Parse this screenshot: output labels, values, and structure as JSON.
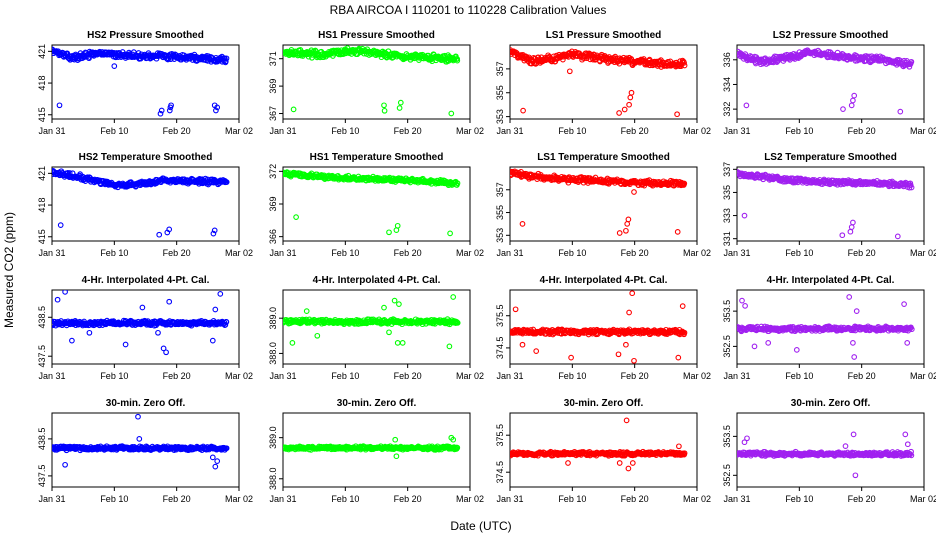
{
  "figure": {
    "title": "RBA   AIRCOA I   110201 to 110228   Calibration Values",
    "xlabel": "Date (UTC)",
    "ylabel": "Measured CO2 (ppm)",
    "x_tick_labels": [
      "Jan 31",
      "Feb 10",
      "Feb 20",
      "Mar 02"
    ],
    "x_tick_days": [
      0,
      10,
      20,
      30
    ],
    "x_range_days": [
      0,
      30
    ]
  },
  "chart_data": [
    {
      "type": "scatter",
      "row": 0,
      "col": 0,
      "title": "HS2 Pressure Smoothed",
      "color": "#0000ff",
      "ylim": [
        414.6,
        421.6
      ],
      "yticks": [
        415,
        418,
        421
      ],
      "ytick_labels": [
        "415",
        "418",
        "421"
      ],
      "baseline": 420.6,
      "noise": 0.35,
      "drift": [
        [
          0,
          421.1
        ],
        [
          3,
          420.4
        ],
        [
          8,
          420.8
        ],
        [
          12,
          420.6
        ],
        [
          20,
          420.5
        ],
        [
          28,
          420.2
        ]
      ],
      "outliers": [
        [
          1.2,
          415.9
        ],
        [
          17.4,
          415.1
        ],
        [
          17.6,
          415.4
        ],
        [
          18.9,
          415.4
        ],
        [
          19.0,
          415.7
        ],
        [
          19.1,
          415.9
        ],
        [
          26.1,
          415.9
        ],
        [
          26.3,
          415.4
        ],
        [
          26.5,
          415.7
        ],
        [
          10.0,
          419.6
        ]
      ]
    },
    {
      "type": "scatter",
      "row": 0,
      "col": 1,
      "title": "HS1 Pressure Smoothed",
      "color": "#00ff00",
      "ylim": [
        366.6,
        372.0
      ],
      "yticks": [
        367,
        369,
        371
      ],
      "ytick_labels": [
        "367",
        "369",
        "371"
      ],
      "baseline": 371.3,
      "noise": 0.3,
      "drift": [
        [
          0,
          371.5
        ],
        [
          6,
          371.3
        ],
        [
          12,
          371.6
        ],
        [
          18,
          371.2
        ],
        [
          28,
          371.0
        ]
      ],
      "outliers": [
        [
          1.7,
          367.3
        ],
        [
          16.2,
          367.6
        ],
        [
          16.3,
          367.2
        ],
        [
          18.7,
          367.4
        ],
        [
          18.9,
          367.8
        ],
        [
          27.0,
          367.0
        ]
      ]
    },
    {
      "type": "scatter",
      "row": 0,
      "col": 2,
      "title": "LS1 Pressure Smoothed",
      "color": "#ff0000",
      "ylim": [
        352.8,
        359.0
      ],
      "yticks": [
        353,
        355,
        357
      ],
      "ytick_labels": [
        "353",
        "355",
        "357"
      ],
      "baseline": 358.0,
      "noise": 0.35,
      "drift": [
        [
          0,
          358.5
        ],
        [
          4,
          357.6
        ],
        [
          10,
          358.2
        ],
        [
          16,
          357.8
        ],
        [
          20,
          357.6
        ],
        [
          28,
          357.4
        ]
      ],
      "outliers": [
        [
          2.1,
          353.5
        ],
        [
          17.5,
          353.3
        ],
        [
          18.4,
          353.6
        ],
        [
          19.1,
          354.0
        ],
        [
          19.3,
          354.6
        ],
        [
          19.5,
          355.0
        ],
        [
          26.8,
          353.2
        ],
        [
          9.6,
          356.8
        ]
      ]
    },
    {
      "type": "scatter",
      "row": 0,
      "col": 3,
      "title": "LS2 Pressure Smoothed",
      "color": "#a020f0",
      "ylim": [
        331.2,
        337.2
      ],
      "yticks": [
        332,
        334,
        336
      ],
      "ytick_labels": [
        "332",
        "334",
        "336"
      ],
      "baseline": 336.2,
      "noise": 0.3,
      "drift": [
        [
          0,
          336.5
        ],
        [
          4,
          335.8
        ],
        [
          12,
          336.6
        ],
        [
          18,
          336.2
        ],
        [
          24,
          336.0
        ],
        [
          28,
          335.6
        ]
      ],
      "outliers": [
        [
          1.5,
          332.3
        ],
        [
          17.0,
          332.0
        ],
        [
          18.4,
          332.3
        ],
        [
          18.6,
          332.7
        ],
        [
          18.8,
          333.1
        ],
        [
          26.2,
          331.8
        ]
      ]
    },
    {
      "type": "scatter",
      "row": 1,
      "col": 0,
      "title": "HS2 Temperature Smoothed",
      "color": "#0000ff",
      "ylim": [
        414.6,
        421.6
      ],
      "yticks": [
        415,
        418,
        421
      ],
      "ytick_labels": [
        "415",
        "418",
        "421"
      ],
      "baseline": 420.3,
      "noise": 0.3,
      "drift": [
        [
          0,
          421.1
        ],
        [
          5,
          420.6
        ],
        [
          10,
          419.9
        ],
        [
          14,
          420.0
        ],
        [
          18,
          420.3
        ],
        [
          28,
          420.2
        ]
      ],
      "outliers": [
        [
          1.4,
          416.1
        ],
        [
          17.2,
          415.2
        ],
        [
          18.5,
          415.4
        ],
        [
          18.8,
          415.7
        ],
        [
          25.9,
          415.3
        ],
        [
          26.1,
          415.6
        ]
      ]
    },
    {
      "type": "scatter",
      "row": 1,
      "col": 1,
      "title": "HS1 Temperature Smoothed",
      "color": "#00ff00",
      "ylim": [
        365.6,
        372.4
      ],
      "yticks": [
        366,
        369,
        372
      ],
      "ytick_labels": [
        "366",
        "369",
        "372"
      ],
      "baseline": 371.3,
      "noise": 0.25,
      "drift": [
        [
          0,
          371.8
        ],
        [
          6,
          371.5
        ],
        [
          14,
          371.3
        ],
        [
          20,
          371.2
        ],
        [
          28,
          370.9
        ]
      ],
      "outliers": [
        [
          2.1,
          367.8
        ],
        [
          17.0,
          366.4
        ],
        [
          18.2,
          366.6
        ],
        [
          18.4,
          367.0
        ],
        [
          26.8,
          366.3
        ]
      ]
    },
    {
      "type": "scatter",
      "row": 1,
      "col": 2,
      "title": "LS1 Temperature Smoothed",
      "color": "#ff0000",
      "ylim": [
        352.5,
        359.0
      ],
      "yticks": [
        353,
        355,
        357
      ],
      "ytick_labels": [
        "353",
        "355",
        "357"
      ],
      "baseline": 357.8,
      "noise": 0.3,
      "drift": [
        [
          0,
          358.5
        ],
        [
          6,
          358.0
        ],
        [
          14,
          357.8
        ],
        [
          20,
          357.6
        ],
        [
          28,
          357.5
        ]
      ],
      "outliers": [
        [
          2.0,
          354.0
        ],
        [
          17.6,
          353.2
        ],
        [
          18.6,
          353.4
        ],
        [
          18.8,
          354.0
        ],
        [
          19.0,
          354.4
        ],
        [
          26.9,
          353.3
        ],
        [
          19.9,
          356.8
        ]
      ]
    },
    {
      "type": "scatter",
      "row": 1,
      "col": 3,
      "title": "LS2 Temperature Smoothed",
      "color": "#a020f0",
      "ylim": [
        330.8,
        337.2
      ],
      "yticks": [
        331,
        333,
        335,
        337
      ],
      "ytick_labels": [
        "331",
        "333",
        "335",
        "337"
      ],
      "baseline": 336.0,
      "noise": 0.25,
      "drift": [
        [
          0,
          336.6
        ],
        [
          6,
          336.2
        ],
        [
          14,
          335.9
        ],
        [
          22,
          335.8
        ],
        [
          28,
          335.6
        ]
      ],
      "outliers": [
        [
          1.2,
          333.0
        ],
        [
          16.9,
          331.3
        ],
        [
          18.2,
          331.6
        ],
        [
          18.4,
          332.0
        ],
        [
          18.6,
          332.4
        ],
        [
          25.8,
          331.2
        ]
      ]
    },
    {
      "type": "scatter",
      "row": 2,
      "col": 0,
      "title": "4-Hr. Interpolated 4-Pt. Cal.",
      "color": "#0000ff",
      "ylim": [
        437.3,
        439.2
      ],
      "yticks": [
        437.5,
        438.5
      ],
      "ytick_labels": [
        "437.5",
        "438.5"
      ],
      "baseline": 438.35,
      "noise": 0.07,
      "drift": [
        [
          0,
          438.35
        ],
        [
          30,
          438.35
        ]
      ],
      "outliers": [
        [
          0.9,
          438.95
        ],
        [
          2.1,
          439.15
        ],
        [
          3.2,
          437.9
        ],
        [
          6.0,
          438.1
        ],
        [
          11.8,
          437.8
        ],
        [
          14.5,
          438.75
        ],
        [
          17.0,
          438.1
        ],
        [
          17.9,
          437.7
        ],
        [
          18.3,
          437.6
        ],
        [
          18.8,
          438.9
        ],
        [
          25.8,
          437.9
        ],
        [
          26.2,
          438.7
        ],
        [
          27.0,
          439.1
        ]
      ]
    },
    {
      "type": "scatter",
      "row": 2,
      "col": 1,
      "title": "4-Hr. Interpolated 4-Pt. Cal.",
      "color": "#00ff00",
      "ylim": [
        387.7,
        389.8
      ],
      "yticks": [
        388.0,
        389.0
      ],
      "ytick_labels": [
        "388.0",
        "389.0"
      ],
      "baseline": 388.9,
      "noise": 0.08,
      "drift": [
        [
          0,
          388.9
        ],
        [
          30,
          388.9
        ]
      ],
      "outliers": [
        [
          1.5,
          388.3
        ],
        [
          3.8,
          389.2
        ],
        [
          5.5,
          388.5
        ],
        [
          16.2,
          389.3
        ],
        [
          17.0,
          388.6
        ],
        [
          17.9,
          389.5
        ],
        [
          18.6,
          389.4
        ],
        [
          18.4,
          388.3
        ],
        [
          19.2,
          388.3
        ],
        [
          26.7,
          388.2
        ],
        [
          27.3,
          389.6
        ]
      ]
    },
    {
      "type": "scatter",
      "row": 2,
      "col": 2,
      "title": "4-Hr. Interpolated 4-Pt. Cal.",
      "color": "#ff0000",
      "ylim": [
        374.0,
        376.3
      ],
      "yticks": [
        374.5,
        375.5
      ],
      "ytick_labels": [
        "374.5",
        "375.5"
      ],
      "baseline": 375.0,
      "noise": 0.09,
      "drift": [
        [
          0,
          375.0
        ],
        [
          30,
          375.0
        ]
      ],
      "outliers": [
        [
          0.9,
          375.7
        ],
        [
          2.0,
          374.6
        ],
        [
          4.2,
          374.4
        ],
        [
          9.8,
          374.2
        ],
        [
          17.4,
          374.3
        ],
        [
          18.6,
          374.6
        ],
        [
          19.1,
          375.6
        ],
        [
          19.6,
          376.2
        ],
        [
          19.9,
          374.1
        ],
        [
          27.0,
          374.2
        ],
        [
          27.7,
          375.8
        ]
      ]
    },
    {
      "type": "scatter",
      "row": 2,
      "col": 3,
      "title": "4-Hr. Interpolated 4-Pt. Cal.",
      "color": "#a020f0",
      "ylim": [
        352.0,
        354.1
      ],
      "yticks": [
        352.5,
        353.5
      ],
      "ytick_labels": [
        "352.5",
        "353.5"
      ],
      "baseline": 353.0,
      "noise": 0.08,
      "drift": [
        [
          0,
          353.0
        ],
        [
          30,
          353.0
        ]
      ],
      "outliers": [
        [
          0.8,
          353.8
        ],
        [
          1.3,
          353.65
        ],
        [
          2.8,
          352.5
        ],
        [
          5.0,
          352.6
        ],
        [
          9.6,
          352.4
        ],
        [
          18.0,
          353.9
        ],
        [
          18.6,
          352.6
        ],
        [
          18.8,
          352.2
        ],
        [
          19.2,
          353.5
        ],
        [
          26.8,
          353.7
        ],
        [
          27.3,
          352.6
        ]
      ]
    },
    {
      "type": "scatter",
      "row": 3,
      "col": 0,
      "title": "30-min. Zero Off.",
      "color": "#0000ff",
      "ylim": [
        437.2,
        439.2
      ],
      "yticks": [
        437.5,
        438.5
      ],
      "ytick_labels": [
        "437.5",
        "438.5"
      ],
      "baseline": 438.25,
      "noise": 0.06,
      "drift": [
        [
          0,
          438.25
        ],
        [
          30,
          438.25
        ]
      ],
      "outliers": [
        [
          2.1,
          437.8
        ],
        [
          13.8,
          439.1
        ],
        [
          14.0,
          438.5
        ],
        [
          25.8,
          438.0
        ],
        [
          26.2,
          437.75
        ],
        [
          26.5,
          437.9
        ]
      ]
    },
    {
      "type": "scatter",
      "row": 3,
      "col": 1,
      "title": "30-min. Zero Off.",
      "color": "#00ff00",
      "ylim": [
        387.8,
        389.6
      ],
      "yticks": [
        388.0,
        389.0
      ],
      "ytick_labels": [
        "388.0",
        "389.0"
      ],
      "baseline": 388.75,
      "noise": 0.05,
      "drift": [
        [
          0,
          388.75
        ],
        [
          30,
          388.75
        ]
      ],
      "outliers": [
        [
          18.0,
          388.95
        ],
        [
          18.2,
          388.55
        ],
        [
          27.0,
          389.0
        ],
        [
          27.3,
          388.95
        ]
      ]
    },
    {
      "type": "scatter",
      "row": 3,
      "col": 2,
      "title": "30-min. Zero Off.",
      "color": "#ff0000",
      "ylim": [
        374.1,
        376.1
      ],
      "yticks": [
        374.5,
        375.5
      ],
      "ytick_labels": [
        "374.5",
        "375.5"
      ],
      "baseline": 375.0,
      "noise": 0.06,
      "drift": [
        [
          0,
          375.0
        ],
        [
          30,
          375.0
        ]
      ],
      "outliers": [
        [
          9.3,
          374.75
        ],
        [
          17.6,
          374.75
        ],
        [
          18.7,
          375.9
        ],
        [
          19.0,
          374.6
        ],
        [
          19.7,
          374.75
        ],
        [
          27.1,
          375.2
        ]
      ]
    },
    {
      "type": "scatter",
      "row": 3,
      "col": 3,
      "title": "30-min. Zero Off.",
      "color": "#a020f0",
      "ylim": [
        352.2,
        354.1
      ],
      "yticks": [
        352.5,
        353.5
      ],
      "ytick_labels": [
        "352.5",
        "353.5"
      ],
      "baseline": 353.05,
      "noise": 0.06,
      "drift": [
        [
          0,
          353.05
        ],
        [
          30,
          353.05
        ]
      ],
      "outliers": [
        [
          1.2,
          353.35
        ],
        [
          1.6,
          353.45
        ],
        [
          17.4,
          353.25
        ],
        [
          18.7,
          353.55
        ],
        [
          19.0,
          352.5
        ],
        [
          27.0,
          353.55
        ],
        [
          27.4,
          353.3
        ]
      ]
    }
  ]
}
